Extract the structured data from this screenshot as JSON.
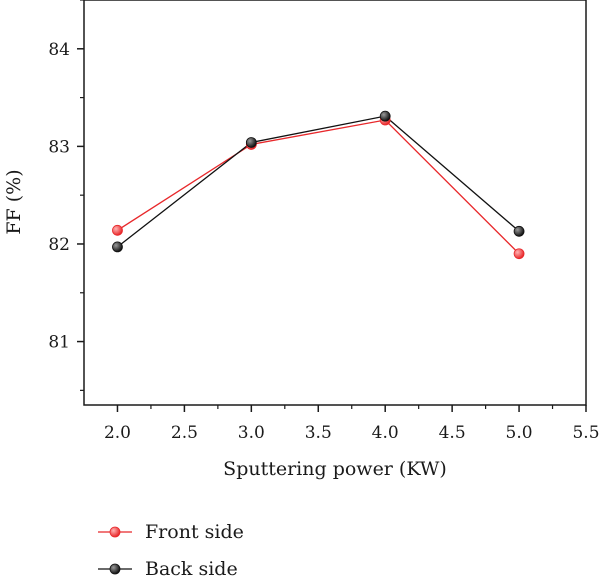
{
  "chart_data": {
    "type": "line",
    "title": "",
    "xlabel": "Sputtering power (KW)",
    "ylabel": "FF (%)",
    "xlim": [
      1.75,
      5.5
    ],
    "ylim": [
      80.35,
      84.5
    ],
    "xticks": [
      2.0,
      2.5,
      3.0,
      3.5,
      4.0,
      4.5,
      5.0,
      5.5
    ],
    "xtick_labels": [
      "2.0",
      "2.5",
      "3.0",
      "3.5",
      "4.0",
      "4.5",
      "5.0",
      "5.5"
    ],
    "yticks": [
      81,
      82,
      83,
      84
    ],
    "ytick_labels": [
      "81",
      "82",
      "83",
      "84"
    ],
    "grid": false,
    "legend_position": "bottom-left, below plot",
    "x": [
      2.0,
      3.0,
      4.0,
      5.0
    ],
    "series": [
      {
        "name": "Front side",
        "color": "#e8282b",
        "values": [
          82.14,
          83.02,
          83.27,
          81.9
        ]
      },
      {
        "name": "Back side",
        "color": "#111111",
        "values": [
          81.97,
          83.04,
          83.31,
          82.13
        ]
      }
    ]
  }
}
